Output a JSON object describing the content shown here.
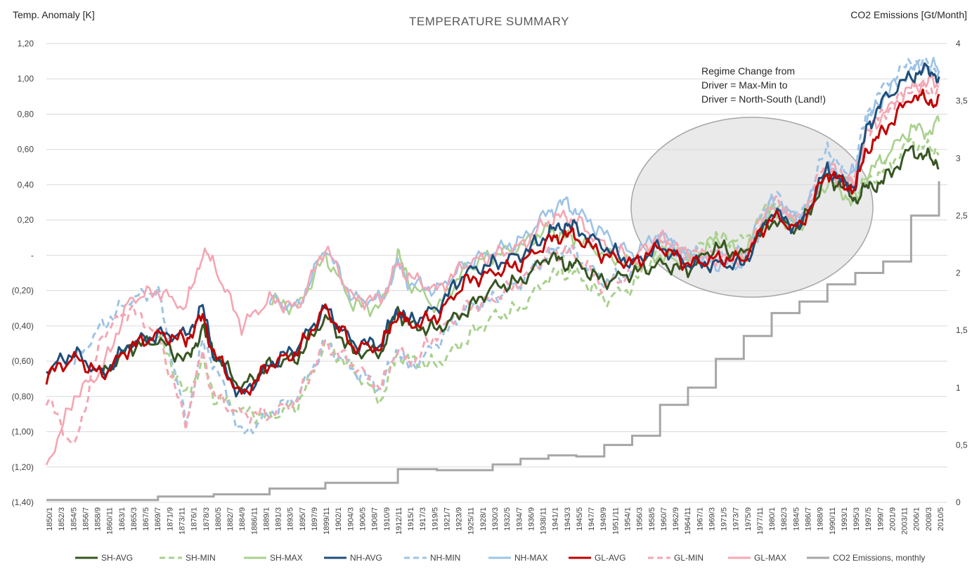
{
  "chart_data": {
    "type": "line",
    "title": "TEMPERATURE SUMMARY",
    "ylabel_left": "Temp. Anomaly [K]",
    "ylabel_right": "CO2 Emissions [Gt/Month]",
    "ylim_left": [
      -1.4,
      1.2
    ],
    "ylim_right": [
      0,
      4
    ],
    "y_ticks_left": [
      "1,20",
      "1,00",
      "0,80",
      "0,60",
      "0,40",
      "0,20",
      "-",
      "(0,20)",
      "(0,40)",
      "(0,60)",
      "(0,80)",
      "(1,00)",
      "(1,20)",
      "(1,40)"
    ],
    "y_ticks_right": [
      "4",
      "3,5",
      "3",
      "2,5",
      "2",
      "1,5",
      "1",
      "0,5",
      "0"
    ],
    "x_ticks": [
      "1850/1",
      "1852/3",
      "1854/5",
      "1856/7",
      "1858/9",
      "1860/11",
      "1863/1",
      "1865/3",
      "1867/5",
      "1869/7",
      "1871/9",
      "1873/11",
      "1876/1",
      "1878/3",
      "1880/5",
      "1882/7",
      "1884/9",
      "1886/11",
      "1889/1",
      "1891/3",
      "1893/5",
      "1895/7",
      "1897/9",
      "1899/11",
      "1902/1",
      "1904/3",
      "1906/5",
      "1908/7",
      "1910/9",
      "1912/11",
      "1915/1",
      "1917/3",
      "1919/5",
      "1921/7",
      "1923/9",
      "1925/11",
      "1928/1",
      "1930/3",
      "1932/5",
      "1934/7",
      "1936/9",
      "1938/11",
      "1941/1",
      "1943/3",
      "1945/5",
      "1947/7",
      "1949/9",
      "1951/11",
      "1954/1",
      "1956/3",
      "1958/5",
      "1960/7",
      "1962/9",
      "1964/11",
      "1967/1",
      "1969/3",
      "1971/5",
      "1973/7",
      "1975/9",
      "1977/11",
      "1980/1",
      "1982/3",
      "1984/5",
      "1986/7",
      "1988/9",
      "1990/11",
      "1993/1",
      "1995/3",
      "1997/5",
      "1999/7",
      "2001/9",
      "2003/11",
      "2006/1",
      "2008/3",
      "2010/5"
    ],
    "annotation": [
      "Regime Change from",
      "Driver = Max-Min to",
      "Driver = North-South (Land!)"
    ],
    "years": [
      1850,
      1855,
      1860,
      1865,
      1870,
      1875,
      1878,
      1880,
      1885,
      1890,
      1895,
      1900,
      1905,
      1910,
      1913,
      1915,
      1920,
      1925,
      1930,
      1935,
      1940,
      1943,
      1945,
      1950,
      1955,
      1960,
      1965,
      1970,
      1975,
      1980,
      1985,
      1990,
      1993,
      1995,
      1997,
      2000,
      2005,
      2008,
      2010
    ],
    "series": [
      {
        "name": "SH-AVG",
        "color": "#375623",
        "dash": false,
        "values": [
          null,
          null,
          -0.68,
          -0.52,
          -0.48,
          -0.6,
          -0.42,
          -0.55,
          -0.75,
          -0.62,
          -0.58,
          -0.35,
          -0.55,
          -0.55,
          -0.3,
          -0.4,
          -0.42,
          -0.32,
          -0.18,
          -0.15,
          0.0,
          -0.05,
          -0.05,
          -0.15,
          -0.1,
          -0.05,
          -0.08,
          0.05,
          0.0,
          0.2,
          0.15,
          0.45,
          0.38,
          0.32,
          0.38,
          0.42,
          0.6,
          0.55,
          0.52
        ]
      },
      {
        "name": "SH-MIN",
        "color": "#a9d18e",
        "dash": true,
        "values": [
          null,
          null,
          null,
          null,
          -0.45,
          -0.8,
          -0.6,
          -0.8,
          -0.88,
          -0.92,
          -0.85,
          -0.5,
          -0.65,
          -0.82,
          -0.55,
          -0.6,
          -0.62,
          -0.48,
          -0.35,
          -0.3,
          -0.12,
          -0.1,
          -0.1,
          -0.25,
          -0.18,
          0.05,
          0.0,
          0.1,
          0.08,
          0.3,
          0.2,
          0.45,
          0.42,
          0.35,
          0.42,
          0.48,
          0.65,
          0.6,
          0.6
        ]
      },
      {
        "name": "SH-MAX",
        "color": "#a9d18e",
        "dash": false,
        "values": [
          null,
          null,
          null,
          null,
          null,
          null,
          null,
          null,
          null,
          -0.25,
          -0.3,
          0.0,
          -0.28,
          -0.3,
          0.0,
          -0.15,
          -0.3,
          -0.08,
          0.0,
          0.05,
          0.15,
          0.1,
          0.1,
          0.0,
          -0.05,
          0.0,
          -0.05,
          0.1,
          0.0,
          0.25,
          0.15,
          0.42,
          0.35,
          0.28,
          0.45,
          0.55,
          0.72,
          0.7,
          0.75
        ]
      },
      {
        "name": "NH-AVG",
        "color": "#1f4e79",
        "dash": false,
        "values": [
          -0.65,
          -0.55,
          -0.68,
          -0.5,
          -0.45,
          -0.45,
          -0.3,
          -0.55,
          -0.8,
          -0.62,
          -0.52,
          -0.3,
          -0.5,
          -0.5,
          -0.3,
          -0.38,
          -0.3,
          -0.1,
          -0.05,
          0.0,
          0.12,
          0.18,
          0.15,
          0.05,
          -0.05,
          0.05,
          -0.05,
          -0.05,
          -0.05,
          0.25,
          0.15,
          0.5,
          0.4,
          0.4,
          0.72,
          0.88,
          1.02,
          1.05,
          1.02
        ]
      },
      {
        "name": "NH-MIN",
        "color": "#9dc3e6",
        "dash": true,
        "values": [
          null,
          -0.6,
          -0.4,
          -0.25,
          -0.2,
          -0.95,
          -0.5,
          -0.6,
          -1.02,
          -0.9,
          -0.8,
          -0.5,
          -0.65,
          -0.75,
          -0.52,
          -0.65,
          -0.5,
          -0.3,
          -0.25,
          -0.15,
          0.0,
          0.05,
          0.0,
          -0.15,
          -0.1,
          0.1,
          0.0,
          0.0,
          0.0,
          0.35,
          0.2,
          0.62,
          0.45,
          0.5,
          0.8,
          0.95,
          1.1,
          1.08,
          1.05
        ]
      },
      {
        "name": "NH-MAX",
        "color": "#9dc3e6",
        "dash": false,
        "values": [
          null,
          null,
          null,
          null,
          null,
          null,
          null,
          null,
          null,
          -0.25,
          -0.3,
          0.05,
          -0.25,
          -0.25,
          -0.05,
          -0.15,
          -0.2,
          -0.05,
          0.02,
          0.08,
          0.25,
          0.3,
          0.25,
          0.12,
          0.0,
          0.12,
          0.0,
          -0.05,
          -0.05,
          0.3,
          0.2,
          0.5,
          0.42,
          0.48,
          0.75,
          0.9,
          1.05,
          1.08,
          1.05
        ]
      },
      {
        "name": "GL-AVG",
        "color": "#c00000",
        "dash": false,
        "values": [
          -0.68,
          -0.58,
          -0.68,
          -0.52,
          -0.45,
          -0.48,
          -0.35,
          -0.55,
          -0.8,
          -0.62,
          -0.55,
          -0.3,
          -0.52,
          -0.52,
          -0.32,
          -0.4,
          -0.35,
          -0.15,
          -0.1,
          -0.05,
          0.08,
          0.12,
          0.1,
          0.0,
          -0.05,
          0.05,
          -0.05,
          -0.02,
          -0.02,
          0.22,
          0.15,
          0.48,
          0.4,
          0.38,
          0.6,
          0.7,
          0.9,
          0.88,
          0.87
        ]
      },
      {
        "name": "GL-MIN",
        "color": "#f4a6b3",
        "dash": true,
        "values": [
          -0.8,
          -1.1,
          -0.45,
          -0.3,
          -0.45,
          -0.95,
          -0.55,
          -0.8,
          -0.9,
          -0.9,
          -0.82,
          -0.5,
          -0.62,
          -0.75,
          -0.52,
          -0.62,
          -0.45,
          -0.3,
          -0.25,
          -0.15,
          0.0,
          0.02,
          0.0,
          -0.18,
          -0.1,
          0.1,
          0.0,
          0.0,
          0.0,
          0.32,
          0.2,
          0.55,
          0.42,
          0.45,
          0.7,
          0.8,
          0.95,
          0.95,
          0.93
        ]
      },
      {
        "name": "GL-MAX",
        "color": "#f4a6b3",
        "dash": false,
        "values": [
          -1.2,
          -0.8,
          -0.65,
          -0.25,
          -0.2,
          -0.3,
          0.02,
          -0.05,
          -0.4,
          -0.25,
          -0.3,
          0.05,
          -0.25,
          -0.25,
          -0.05,
          -0.12,
          -0.2,
          -0.05,
          0.0,
          0.05,
          0.2,
          0.22,
          0.2,
          0.05,
          -0.02,
          0.1,
          0.0,
          -0.02,
          -0.02,
          0.28,
          0.18,
          0.48,
          0.4,
          0.42,
          0.68,
          0.8,
          0.95,
          0.98,
          0.96
        ]
      }
    ],
    "co2_series": {
      "name": "CO2 Emissions, monthly",
      "color": "#a6a6a6",
      "axis": "right",
      "years": [
        1850,
        1870,
        1880,
        1890,
        1900,
        1913,
        1920,
        1930,
        1935,
        1940,
        1945,
        1950,
        1955,
        1960,
        1965,
        1970,
        1975,
        1980,
        1985,
        1990,
        1995,
        2000,
        2005,
        2010
      ],
      "values": [
        0.02,
        0.05,
        0.07,
        0.12,
        0.17,
        0.29,
        0.28,
        0.33,
        0.38,
        0.41,
        0.4,
        0.5,
        0.58,
        0.85,
        1.0,
        1.25,
        1.45,
        1.65,
        1.75,
        1.9,
        2.0,
        2.1,
        2.5,
        2.8
      ]
    },
    "legend_position": "bottom",
    "grid": true
  }
}
